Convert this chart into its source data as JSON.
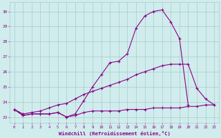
{
  "x": [
    0,
    1,
    2,
    3,
    4,
    5,
    6,
    7,
    8,
    9,
    10,
    11,
    12,
    13,
    14,
    15,
    16,
    17,
    18,
    19,
    20,
    21,
    22,
    23
  ],
  "line1": [
    23.5,
    23.1,
    23.2,
    23.2,
    23.2,
    23.3,
    23.0,
    23.1,
    23.3,
    23.4,
    23.4,
    23.4,
    23.4,
    23.5,
    23.5,
    23.5,
    23.6,
    23.6,
    23.6,
    23.6,
    23.7,
    23.7,
    23.8,
    23.8
  ],
  "line2": [
    23.5,
    23.2,
    23.3,
    23.4,
    23.6,
    23.8,
    23.9,
    24.2,
    24.5,
    24.7,
    24.9,
    25.1,
    25.3,
    25.5,
    25.8,
    26.0,
    26.2,
    26.4,
    26.5,
    26.5,
    26.5,
    24.9,
    24.2,
    23.8
  ],
  "line3": [
    23.5,
    23.1,
    23.2,
    23.2,
    23.2,
    23.3,
    23.0,
    23.2,
    24.1,
    25.0,
    25.8,
    26.6,
    26.7,
    27.2,
    28.9,
    29.7,
    30.0,
    30.1,
    29.3,
    28.2,
    23.8,
    null,
    null,
    null
  ],
  "ylabel_ticks": [
    23,
    24,
    25,
    26,
    27,
    28,
    29,
    30
  ],
  "xlabel": "Windchill (Refroidissement éolien,°C)",
  "ylim": [
    22.6,
    30.6
  ],
  "xlim": [
    -0.5,
    23.5
  ],
  "line_color": "#880088",
  "bg_color": "#d0ecec",
  "grid_color": "#a8cccc",
  "tick_color": "#880088",
  "xlabel_color": "#880088"
}
